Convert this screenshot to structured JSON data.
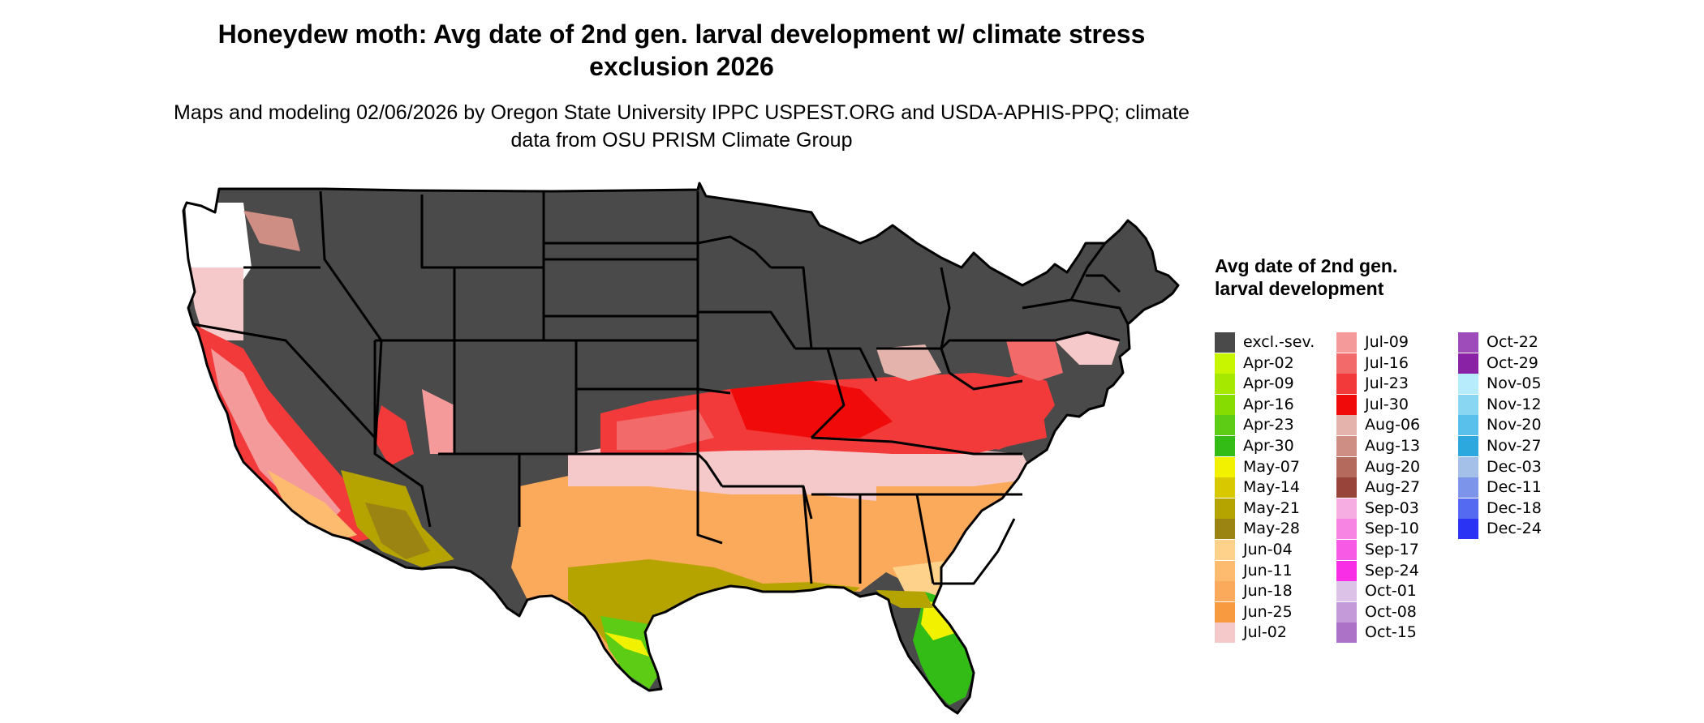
{
  "title": "Honeydew moth: Avg date of 2nd gen. larval development w/ climate stress exclusion 2026",
  "subtitle": "Maps and modeling 02/06/2026 by Oregon State University IPPC USPEST.ORG and USDA-APHIS-PPQ; climate data from OSU PRISM Climate Group",
  "legend": {
    "title": "Avg date of 2nd gen. larval development",
    "items": [
      {
        "label": "excl.-sev.",
        "color": "#4a4a4a"
      },
      {
        "label": "Apr-02",
        "color": "#c8f500"
      },
      {
        "label": "Apr-09",
        "color": "#a6e800"
      },
      {
        "label": "Apr-16",
        "color": "#86dc00"
      },
      {
        "label": "Apr-23",
        "color": "#5ccc14"
      },
      {
        "label": "Apr-30",
        "color": "#33bb16"
      },
      {
        "label": "May-07",
        "color": "#f2f200"
      },
      {
        "label": "May-14",
        "color": "#d8c800"
      },
      {
        "label": "May-21",
        "color": "#b5a300"
      },
      {
        "label": "May-28",
        "color": "#9c8412"
      },
      {
        "label": "Jun-04",
        "color": "#ffd28c"
      },
      {
        "label": "Jun-11",
        "color": "#fdbb70"
      },
      {
        "label": "Jun-18",
        "color": "#fba95a"
      },
      {
        "label": "Jun-25",
        "color": "#f79a40"
      },
      {
        "label": "Jul-02",
        "color": "#f5c9c9"
      },
      {
        "label": "Jul-09",
        "color": "#f49a9a"
      },
      {
        "label": "Jul-16",
        "color": "#f36a6a"
      },
      {
        "label": "Jul-23",
        "color": "#f33a3a"
      },
      {
        "label": "Jul-30",
        "color": "#f00a0a"
      },
      {
        "label": "Aug-06",
        "color": "#e4b4ac"
      },
      {
        "label": "Aug-13",
        "color": "#cf8e84"
      },
      {
        "label": "Aug-20",
        "color": "#b46a5c"
      },
      {
        "label": "Aug-27",
        "color": "#98443a"
      },
      {
        "label": "Sep-03",
        "color": "#f6aee2"
      },
      {
        "label": "Sep-10",
        "color": "#f784e2"
      },
      {
        "label": "Sep-17",
        "color": "#f75ae4"
      },
      {
        "label": "Sep-24",
        "color": "#f72ee6"
      },
      {
        "label": "Oct-01",
        "color": "#dcc2e6"
      },
      {
        "label": "Oct-08",
        "color": "#c49ad8"
      },
      {
        "label": "Oct-15",
        "color": "#ac72c8"
      },
      {
        "label": "Oct-22",
        "color": "#9e4cba"
      },
      {
        "label": "Oct-29",
        "color": "#8a22a6"
      },
      {
        "label": "Nov-05",
        "color": "#b6ecfc"
      },
      {
        "label": "Nov-12",
        "color": "#88d6f2"
      },
      {
        "label": "Nov-20",
        "color": "#58c0ea"
      },
      {
        "label": "Nov-27",
        "color": "#2ca8de"
      },
      {
        "label": "Dec-03",
        "color": "#a4c0e8"
      },
      {
        "label": "Dec-11",
        "color": "#7c94ea"
      },
      {
        "label": "Dec-18",
        "color": "#546af0"
      },
      {
        "label": "Dec-24",
        "color": "#2a32f4"
      }
    ]
  }
}
